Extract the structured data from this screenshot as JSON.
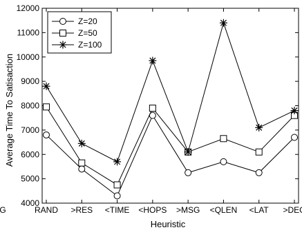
{
  "chart_data": {
    "type": "line",
    "title": "",
    "xlabel": "Heuristic",
    "ylabel": "Average Time To Satisaction",
    "categories": [
      "RAND",
      ">RES",
      "<TIME",
      "<HOPS",
      ">MSG",
      "<QLEN",
      "<LAT",
      ">DEG"
    ],
    "x_tick_labels": [
      "G",
      "RAND",
      ">RES",
      "<TIME",
      "<HOPS",
      ">MSG",
      "<QLEN",
      "<LAT",
      ">DEG"
    ],
    "ylim": [
      4000,
      12000
    ],
    "yticks": [
      4000,
      5000,
      6000,
      7000,
      8000,
      9000,
      10000,
      11000,
      12000
    ],
    "grid": false,
    "legend_position": "top-left",
    "series": [
      {
        "name": "Z=20",
        "marker": "circle",
        "values": [
          6800,
          5400,
          4300,
          7600,
          5250,
          5700,
          5250,
          6700
        ]
      },
      {
        "name": "Z=50",
        "marker": "square",
        "values": [
          7950,
          5650,
          4750,
          7900,
          6100,
          6650,
          6100,
          7600
        ]
      },
      {
        "name": "Z=100",
        "marker": "star",
        "values": [
          8800,
          6450,
          5700,
          9850,
          6100,
          11400,
          7100,
          7800
        ]
      }
    ]
  }
}
